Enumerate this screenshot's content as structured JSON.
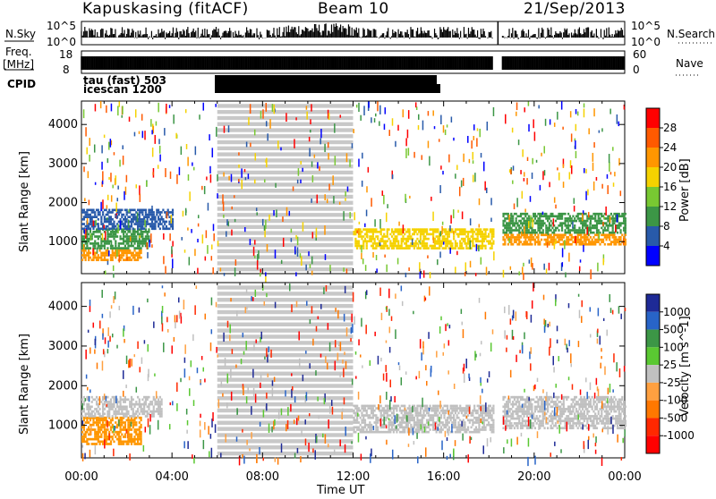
{
  "header": {
    "station": "Kapuskasing (fitACF)",
    "beam": "Beam 10",
    "date": "21/Sep/2013"
  },
  "side_labels": {
    "nsky": "N.Sky",
    "nsearch": "N.Search",
    "freq_line1": "Freq.",
    "freq_line2": "[MHz]",
    "nave": "Nave",
    "cpid": "CPID"
  },
  "small_axes": {
    "noise_left_top": "10^5",
    "noise_left_bottom": "10^0",
    "noise_right_top": "10^5",
    "noise_right_bottom": "10^0",
    "freq_left_top": "18",
    "freq_left_bottom": "8",
    "nave_right_top": "60",
    "nave_right_bottom": "0"
  },
  "cpid_labels": {
    "line1": "tau (fast) 503",
    "line2": "icescan 1200"
  },
  "chart_data": [
    {
      "type": "heatmap",
      "name": "power",
      "ylabel": "Slant Range [km]",
      "xlabel": "",
      "x_ticks": [
        "00:00",
        "04:00",
        "08:00",
        "12:00",
        "16:00",
        "20:00",
        "00:00"
      ],
      "x_range_hours": [
        0,
        24
      ],
      "y_ticks": [
        1000,
        2000,
        3000,
        4000
      ],
      "ylim": [
        180,
        4600
      ],
      "colorbar_label": "Power [dB]",
      "colorbar_ticks": [
        "28",
        "24",
        "20",
        "16",
        "12",
        "8",
        "4"
      ],
      "colorbar_colors": [
        "#ff0000",
        "#ff5a00",
        "#ff9600",
        "#f5d200",
        "#78c832",
        "#3c9646",
        "#285aaa",
        "#0000ff"
      ],
      "ground_scatter_gray_hours": [
        6,
        12
      ],
      "regions": [
        {
          "t0": 0.0,
          "t1": 2.6,
          "r0": 500,
          "r1": 800,
          "color": "#ff9600"
        },
        {
          "t0": 0.0,
          "t1": 3.0,
          "r0": 800,
          "r1": 1300,
          "color": "#3c9646"
        },
        {
          "t0": 0.0,
          "t1": 4.0,
          "r0": 1300,
          "r1": 1800,
          "color": "#285aaa"
        },
        {
          "t0": 12.0,
          "t1": 18.2,
          "r0": 800,
          "r1": 1300,
          "color": "#f5d200"
        },
        {
          "t0": 18.6,
          "t1": 24.0,
          "r0": 900,
          "r1": 1200,
          "color": "#ff9600"
        },
        {
          "t0": 18.6,
          "t1": 24.0,
          "r0": 1200,
          "r1": 1700,
          "color": "#3c9646"
        }
      ]
    },
    {
      "type": "heatmap",
      "name": "velocity",
      "ylabel": "Slant Range [km]",
      "xlabel": "Time UT",
      "x_ticks": [
        "00:00",
        "04:00",
        "08:00",
        "12:00",
        "16:00",
        "20:00",
        "00:00"
      ],
      "x_range_hours": [
        0,
        24
      ],
      "y_ticks": [
        1000,
        2000,
        3000,
        4000
      ],
      "ylim": [
        180,
        4600
      ],
      "colorbar_label": "Velocity [m s^-1]",
      "colorbar_ticks": [
        "1000",
        "500",
        "100",
        "25",
        "-25",
        "-100",
        "-500",
        "-1000"
      ],
      "colorbar_colors": [
        "#1e2a96",
        "#2864c8",
        "#3c9646",
        "#5ac832",
        "#c0c0c0",
        "#ffa040",
        "#ff7800",
        "#ff2800",
        "#ff0000"
      ],
      "ground_scatter_gray_hours": [
        6,
        12
      ],
      "regions": [
        {
          "t0": 0.0,
          "t1": 2.6,
          "r0": 500,
          "r1": 1200,
          "color": "#ff9600"
        },
        {
          "t0": 0.0,
          "t1": 3.5,
          "r0": 1200,
          "r1": 1700,
          "color": "#c0c0c0"
        },
        {
          "t0": 12.0,
          "t1": 18.2,
          "r0": 800,
          "r1": 1500,
          "color": "#c0c0c0"
        },
        {
          "t0": 18.6,
          "t1": 24.0,
          "r0": 900,
          "r1": 1700,
          "color": "#c0c0c0"
        }
      ]
    }
  ]
}
